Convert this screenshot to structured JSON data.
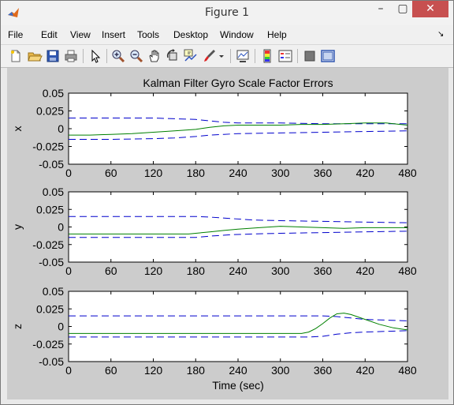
{
  "window": {
    "title": "Figure 1",
    "minimize": "–",
    "maximize": "▢",
    "close": "✕"
  },
  "menu": [
    "File",
    "Edit",
    "View",
    "Insert",
    "Tools",
    "Desktop",
    "Window",
    "Help"
  ],
  "menu_arrow": "↘",
  "toolbar_icons": [
    "new-figure-icon",
    "open-file-icon",
    "save-icon",
    "print-icon",
    "pointer-icon",
    "zoom-in-icon",
    "zoom-out-icon",
    "pan-icon",
    "rotate-3d-icon",
    "data-cursor-icon",
    "brush-icon",
    "brush-dropdown-icon",
    "link-plot-icon",
    "colorbar-icon",
    "legend-icon",
    "hide-plot-tools-icon",
    "show-plot-tools-icon"
  ],
  "colors": {
    "bound": "#0000cc",
    "estimate": "#008000",
    "background": "#cccccc"
  },
  "chart_data": [
    {
      "type": "line",
      "title": "Kalman Filter Gyro Scale Factor Errors",
      "xlabel": "",
      "ylabel": "x",
      "xlim": [
        0,
        480
      ],
      "ylim": [
        -0.05,
        0.05
      ],
      "xticks": [
        "0",
        "60",
        "120",
        "180",
        "240",
        "300",
        "360",
        "420",
        "480"
      ],
      "yticks": [
        "0.05",
        "0.025",
        "0",
        "-0.025",
        "-0.05"
      ],
      "series": [
        {
          "style": "dashed",
          "color": "#0000cc",
          "x": [
            0,
            60,
            120,
            150,
            180,
            200,
            220,
            240,
            300,
            360,
            420,
            480
          ],
          "y": [
            0.015,
            0.015,
            0.015,
            0.014,
            0.013,
            0.011,
            0.009,
            0.008,
            0.008,
            0.007,
            0.007,
            0.007
          ]
        },
        {
          "style": "dashed",
          "color": "#0000cc",
          "x": [
            0,
            60,
            120,
            150,
            180,
            200,
            220,
            240,
            300,
            360,
            420,
            480
          ],
          "y": [
            -0.015,
            -0.015,
            -0.014,
            -0.013,
            -0.011,
            -0.009,
            -0.008,
            -0.007,
            -0.006,
            -0.005,
            -0.004,
            -0.003
          ]
        },
        {
          "style": "solid",
          "color": "#008000",
          "x": [
            0,
            30,
            60,
            90,
            120,
            150,
            180,
            200,
            220,
            240,
            270,
            300,
            330,
            360,
            390,
            420,
            450,
            480
          ],
          "y": [
            -0.009,
            -0.009,
            -0.008,
            -0.007,
            -0.005,
            -0.003,
            -0.001,
            0.002,
            0.004,
            0.005,
            0.005,
            0.005,
            0.006,
            0.006,
            0.007,
            0.008,
            0.008,
            0.005
          ]
        }
      ]
    },
    {
      "type": "line",
      "title": "",
      "xlabel": "",
      "ylabel": "y",
      "xlim": [
        0,
        480
      ],
      "ylim": [
        -0.05,
        0.05
      ],
      "xticks": [
        "0",
        "60",
        "120",
        "180",
        "240",
        "300",
        "360",
        "420",
        "480"
      ],
      "yticks": [
        "0.05",
        "0.025",
        "0",
        "-0.025",
        "-0.05"
      ],
      "series": [
        {
          "style": "dashed",
          "color": "#0000cc",
          "x": [
            0,
            60,
            120,
            180,
            200,
            230,
            260,
            300,
            360,
            420,
            480
          ],
          "y": [
            0.015,
            0.015,
            0.015,
            0.015,
            0.014,
            0.012,
            0.01,
            0.009,
            0.008,
            0.007,
            0.006
          ]
        },
        {
          "style": "dashed",
          "color": "#0000cc",
          "x": [
            0,
            60,
            120,
            180,
            200,
            230,
            260,
            300,
            360,
            420,
            480
          ],
          "y": [
            -0.015,
            -0.015,
            -0.015,
            -0.015,
            -0.013,
            -0.011,
            -0.01,
            -0.009,
            -0.008,
            -0.007,
            -0.006
          ]
        },
        {
          "style": "solid",
          "color": "#008000",
          "x": [
            0,
            60,
            120,
            170,
            180,
            200,
            220,
            240,
            270,
            300,
            330,
            360,
            390,
            420,
            450,
            480
          ],
          "y": [
            -0.01,
            -0.01,
            -0.01,
            -0.01,
            -0.009,
            -0.007,
            -0.005,
            -0.003,
            -0.001,
            0.001,
            0.0,
            -0.001,
            -0.002,
            -0.001,
            -0.001,
            -0.001
          ]
        }
      ]
    },
    {
      "type": "line",
      "title": "",
      "xlabel": "Time (sec)",
      "ylabel": "z",
      "xlim": [
        0,
        480
      ],
      "ylim": [
        -0.05,
        0.05
      ],
      "xticks": [
        "0",
        "60",
        "120",
        "180",
        "240",
        "300",
        "360",
        "420",
        "480"
      ],
      "yticks": [
        "0.05",
        "0.025",
        "0",
        "-0.025",
        "-0.05"
      ],
      "series": [
        {
          "style": "dashed",
          "color": "#0000cc",
          "x": [
            0,
            60,
            120,
            180,
            240,
            300,
            340,
            360,
            380,
            400,
            420,
            450,
            480
          ],
          "y": [
            0.015,
            0.015,
            0.015,
            0.015,
            0.015,
            0.015,
            0.015,
            0.015,
            0.014,
            0.012,
            0.01,
            0.009,
            0.008
          ]
        },
        {
          "style": "dashed",
          "color": "#0000cc",
          "x": [
            0,
            60,
            120,
            180,
            240,
            300,
            340,
            360,
            380,
            400,
            420,
            450,
            480
          ],
          "y": [
            -0.015,
            -0.015,
            -0.015,
            -0.015,
            -0.015,
            -0.015,
            -0.015,
            -0.014,
            -0.011,
            -0.009,
            -0.008,
            -0.007,
            -0.006
          ]
        },
        {
          "style": "solid",
          "color": "#008000",
          "x": [
            0,
            60,
            120,
            180,
            240,
            300,
            330,
            340,
            350,
            360,
            370,
            380,
            390,
            400,
            420,
            440,
            460,
            480
          ],
          "y": [
            -0.01,
            -0.01,
            -0.01,
            -0.01,
            -0.01,
            -0.01,
            -0.01,
            -0.008,
            -0.003,
            0.004,
            0.012,
            0.018,
            0.019,
            0.017,
            0.01,
            0.003,
            -0.002,
            -0.005
          ]
        }
      ]
    }
  ]
}
